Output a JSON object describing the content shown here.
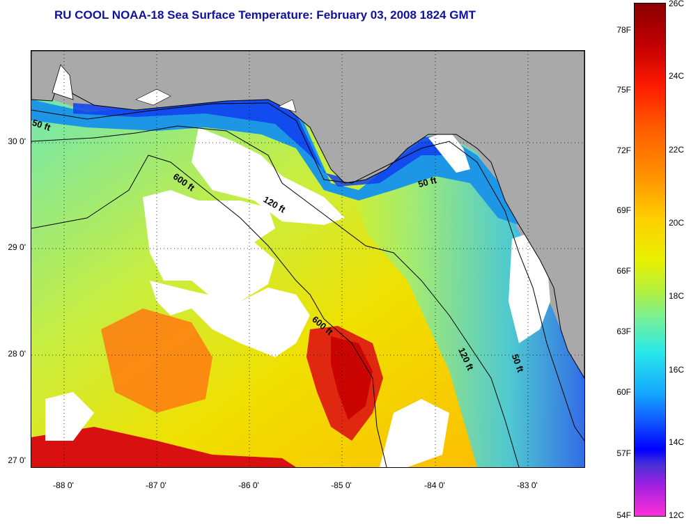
{
  "header": {
    "title": "RU COOL  NOAA-18  Sea Surface Temperature:  February 03, 2008 1824 GMT"
  },
  "axes": {
    "lat_labels": [
      "30 0'",
      "29 0'",
      "28 0'",
      "27 0'"
    ],
    "lon_labels": [
      "-88 0'",
      "-87 0'",
      "-86 0'",
      "-85 0'",
      "-84 0'",
      "-83 0'"
    ]
  },
  "contours": {
    "labels": [
      "50 ft",
      "600 ft",
      "120 ft",
      "50 ft",
      "600 ft",
      "120 ft",
      "50 ft"
    ]
  },
  "colorbar": {
    "fahrenheit": [
      "78F",
      "75F",
      "72F",
      "69F",
      "66F",
      "63F",
      "60F",
      "57F",
      "54F"
    ],
    "celsius": [
      "26C",
      "24C",
      "22C",
      "20C",
      "18C",
      "16C",
      "14C",
      "12C"
    ],
    "colors": {
      "hot": "#8b0000",
      "warm": "#ff5a00",
      "mild": "#e8f000",
      "cool": "#28e8e8",
      "cold": "#0000ff",
      "coldest": "#ff30d8"
    }
  },
  "map": {
    "colors": {
      "land": "#a9a9a9",
      "cloud": "#ffffff",
      "coastline": "#000000"
    }
  }
}
